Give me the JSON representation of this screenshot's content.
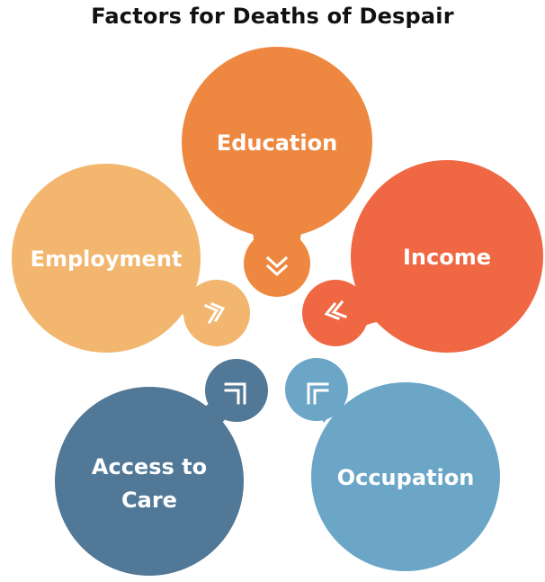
{
  "title": "Factors for Deaths of Despair",
  "factors": [
    {
      "label": "Education",
      "color": "#EE8841",
      "icon": "chevron-down-icon"
    },
    {
      "label": "Income",
      "color": "#EF6843",
      "icon": "chevron-down-left-icon"
    },
    {
      "label": "Occupation",
      "color": "#6CA6C7",
      "icon": "chevron-up-left-icon"
    },
    {
      "label_line1": "Access to",
      "label_line2": "Care",
      "color": "#517896",
      "icon": "chevron-up-right-icon"
    },
    {
      "label": "Employment",
      "color": "#F2B66E",
      "icon": "chevron-down-right-icon"
    }
  ]
}
